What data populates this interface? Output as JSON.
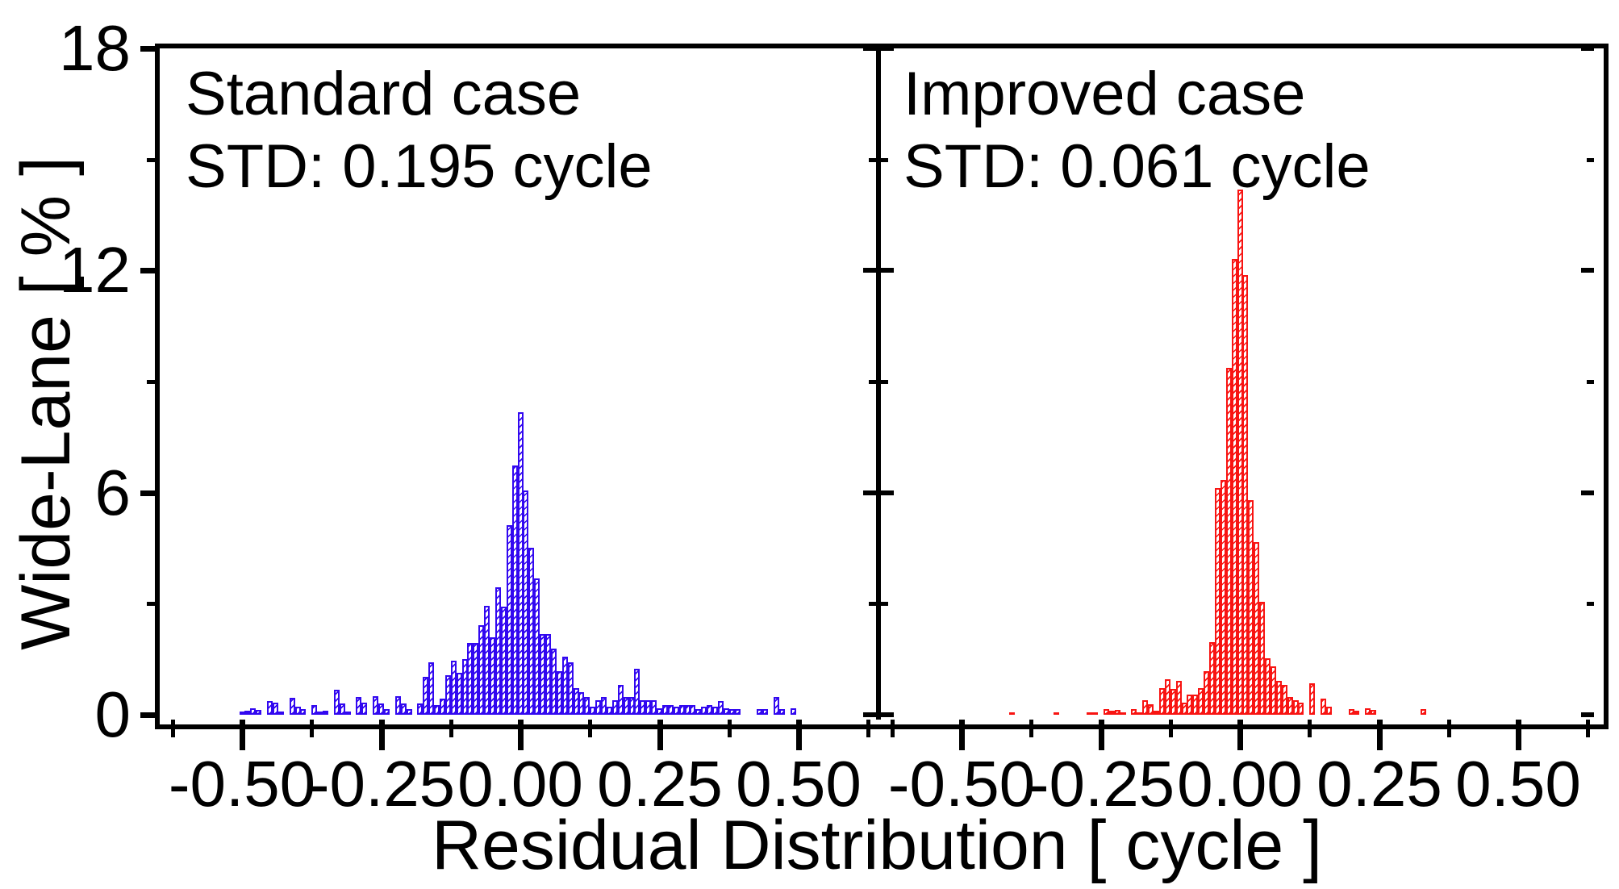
{
  "figure": {
    "background": "#ffffff",
    "axis_color": "#000000",
    "y_axis": {
      "label": "Wide-Lane [ % ]",
      "tick_labels": [
        "0",
        "6",
        "12",
        "18"
      ],
      "tick_values": [
        0,
        6,
        12,
        18
      ],
      "minor_tick_values": [
        3,
        9,
        15
      ],
      "max": 18
    },
    "x_axis": {
      "label": "Residual Distribution [ cycle ]",
      "tick_labels": [
        "-0.50",
        "-0.25",
        "0.00",
        "0.25",
        "0.50"
      ],
      "tick_values": [
        -0.5,
        -0.25,
        0,
        0.25,
        0.5
      ],
      "minor_tick_values": [
        -0.625,
        -0.375,
        -0.125,
        0.125,
        0.375,
        0.625
      ]
    }
  },
  "chart_data": [
    {
      "type": "bar",
      "subtype": "histogram",
      "title": "Standard case",
      "annotation": "STD: 0.195 cycle",
      "color": "#3208f0",
      "xlabel": "Residual Distribution [ cycle ]",
      "ylabel": "Wide-Lane [ % ]",
      "xlim": [
        -0.65,
        0.645
      ],
      "ylim": [
        0,
        18
      ],
      "x_start": -0.5,
      "bin_width": 0.01,
      "heights": [
        0.08,
        0.1,
        0.18,
        0.12,
        0,
        0.36,
        0.33,
        0.09,
        0,
        0.46,
        0.22,
        0.15,
        0,
        0.26,
        0.08,
        0.1,
        0,
        0.68,
        0.3,
        0.08,
        0,
        0.49,
        0.33,
        0,
        0.5,
        0.3,
        0.15,
        0,
        0.5,
        0.3,
        0.15,
        0,
        0.3,
        1.02,
        1.42,
        0.26,
        0.44,
        1.06,
        1.46,
        1.13,
        1.5,
        1.95,
        1.95,
        2.41,
        2.95,
        2.1,
        3.45,
        2.91,
        5.12,
        6.74,
        8.17,
        6.05,
        4.52,
        3.68,
        2.19,
        2.19,
        1.79,
        1.17,
        1.57,
        1.42,
        0.73,
        0.62,
        0.47,
        0.22,
        0.4,
        0.47,
        0.22,
        0.4,
        0.8,
        0.47,
        0.47,
        1.24,
        0.4,
        0.4,
        0.4,
        0.18,
        0.26,
        0.26,
        0.22,
        0.26,
        0.26,
        0.26,
        0.15,
        0.22,
        0.26,
        0.22,
        0.36,
        0.18,
        0.15,
        0.15,
        0,
        0,
        0,
        0.15,
        0.15,
        0,
        0.47,
        0.15,
        0,
        0.18,
        0
      ]
    },
    {
      "type": "bar",
      "subtype": "histogram",
      "title": "Improved case",
      "annotation": "STD: 0.061 cycle",
      "color": "#f81412",
      "xlabel": "Residual Distribution [ cycle ]",
      "ylabel": "Wide-Lane [ % ]",
      "xlim": [
        -0.65,
        0.645
      ],
      "ylim": [
        0,
        18
      ],
      "x_start": -0.5,
      "bin_width": 0.01,
      "heights": [
        0,
        0,
        0,
        0,
        0,
        0,
        0,
        0,
        0,
        0.07,
        0,
        0,
        0,
        0,
        0,
        0,
        0,
        0.07,
        0,
        0,
        0,
        0,
        0,
        0.07,
        0.07,
        0,
        0.15,
        0.11,
        0.13,
        0.07,
        0,
        0.16,
        0.07,
        0.4,
        0.29,
        0.11,
        0.73,
        0.95,
        0.69,
        0.91,
        0.33,
        0.55,
        0.55,
        0.73,
        1.17,
        1.97,
        6.12,
        6.34,
        9.37,
        12.32,
        14.19,
        11.88,
        5.8,
        4.66,
        3.06,
        1.53,
        1.31,
        0.91,
        0.8,
        0.47,
        0.4,
        0.33,
        0,
        0.84,
        0,
        0.44,
        0.22,
        0,
        0,
        0,
        0.15,
        0.1,
        0,
        0.18,
        0.12,
        0,
        0,
        0,
        0,
        0,
        0,
        0,
        0,
        0.16,
        0,
        0,
        0,
        0,
        0,
        0,
        0,
        0,
        0,
        0,
        0,
        0,
        0,
        0,
        0,
        0,
        0
      ]
    }
  ]
}
